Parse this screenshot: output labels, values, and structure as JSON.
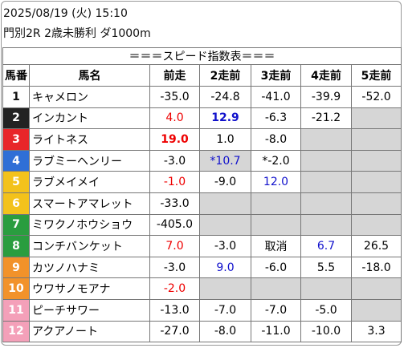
{
  "header": {
    "datetime": "2025/08/19 (火) 15:10",
    "race": "門別2R 2歳未勝利 ダ1000m"
  },
  "table": {
    "title": "＝＝＝スピード指数表＝＝＝",
    "columns": [
      "馬番",
      "馬名",
      "前走",
      "2走前",
      "3走前",
      "4走前",
      "5走前"
    ],
    "rows": [
      [
        "1",
        "キャメロン",
        "-35.0",
        "-24.8",
        "-41.0",
        "-39.9",
        "-52.0"
      ],
      [
        "2",
        "インカント",
        "4.0",
        "12.9",
        "-6.3",
        "-21.2",
        null
      ],
      [
        "3",
        "ライトネス",
        "19.0",
        "1.0",
        "-8.0",
        null,
        null
      ],
      [
        "4",
        "ラブミーヘンリー",
        "-3.0",
        "*10.7",
        "*-2.0",
        null,
        null
      ],
      [
        "5",
        "ラブメイメイ",
        "-1.0",
        "-9.0",
        "12.0",
        null,
        null
      ],
      [
        "6",
        "スマートアマレット",
        "-33.0",
        null,
        null,
        null,
        null
      ],
      [
        "7",
        "ミワクノホウショウ",
        "-405.0",
        null,
        null,
        null,
        null
      ],
      [
        "8",
        "コンチバンケット",
        "7.0",
        "-3.0",
        "取消",
        "6.7",
        "26.5"
      ],
      [
        "9",
        "カツノハナミ",
        "-3.0",
        "9.0",
        "-6.0",
        "5.5",
        "-18.0"
      ],
      [
        "10",
        "ウワサノモアナ",
        "-2.0",
        null,
        null,
        null,
        null
      ],
      [
        "11",
        "ピーチサワー",
        "-13.0",
        "-7.0",
        "-7.0",
        "-5.0",
        null
      ],
      [
        "12",
        "アクアノート",
        "-27.0",
        "-8.0",
        "-11.0",
        "-10.0",
        "3.3"
      ]
    ]
  }
}
